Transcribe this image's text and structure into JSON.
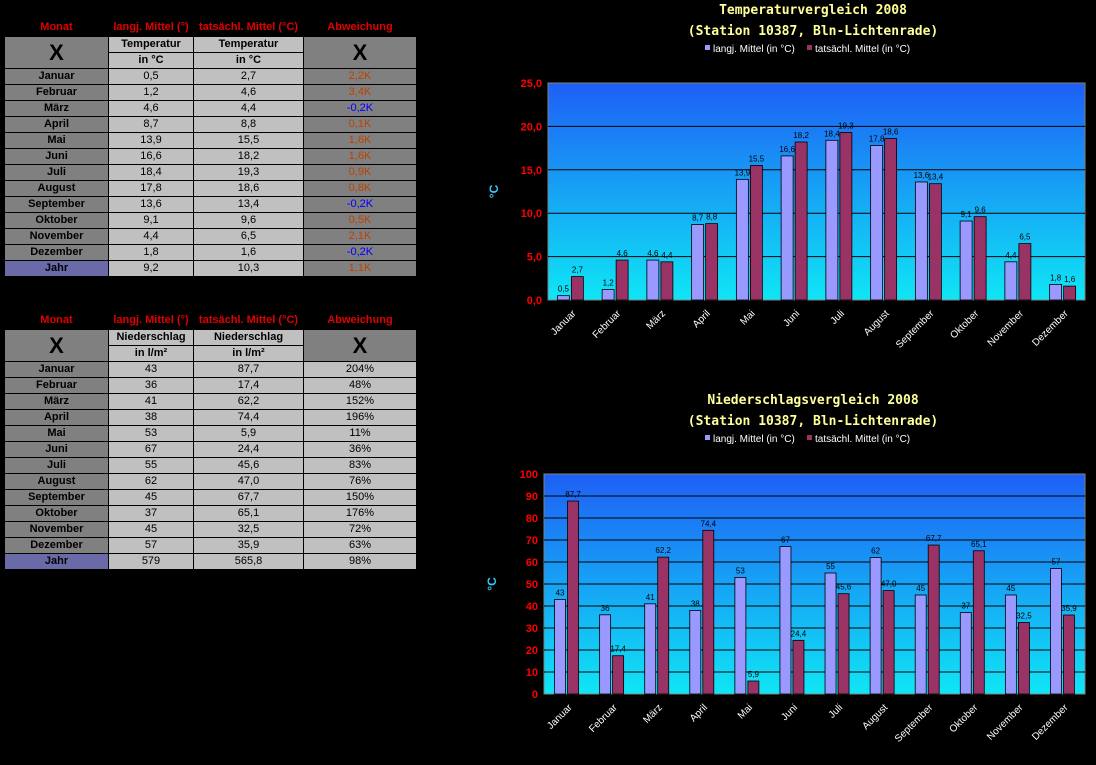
{
  "temp_table": {
    "headers": [
      "Monat",
      "langj. Mittel (°)",
      "tatsächl. Mittel (°C)",
      "Abweichung"
    ],
    "x_mark": "X",
    "sub1_label": "Temperatur",
    "sub1_unit": "in °C",
    "sub2_label": "Temperatur",
    "sub2_unit": "in °C",
    "rows": [
      {
        "month": "Januar",
        "avg": "0,5",
        "actual": "2,7",
        "dev": "2,2K",
        "neg": false
      },
      {
        "month": "Februar",
        "avg": "1,2",
        "actual": "4,6",
        "dev": "3,4K",
        "neg": false
      },
      {
        "month": "März",
        "avg": "4,6",
        "actual": "4,4",
        "dev": "-0,2K",
        "neg": true
      },
      {
        "month": "April",
        "avg": "8,7",
        "actual": "8,8",
        "dev": "0,1K",
        "neg": false
      },
      {
        "month": "Mai",
        "avg": "13,9",
        "actual": "15,5",
        "dev": "1,6K",
        "neg": false
      },
      {
        "month": "Juni",
        "avg": "16,6",
        "actual": "18,2",
        "dev": "1,6K",
        "neg": false
      },
      {
        "month": "Juli",
        "avg": "18,4",
        "actual": "19,3",
        "dev": "0,9K",
        "neg": false
      },
      {
        "month": "August",
        "avg": "17,8",
        "actual": "18,6",
        "dev": "0,8K",
        "neg": false
      },
      {
        "month": "September",
        "avg": "13,6",
        "actual": "13,4",
        "dev": "-0,2K",
        "neg": true
      },
      {
        "month": "Oktober",
        "avg": "9,1",
        "actual": "9,6",
        "dev": "0,5K",
        "neg": false
      },
      {
        "month": "November",
        "avg": "4,4",
        "actual": "6,5",
        "dev": "2,1K",
        "neg": false
      },
      {
        "month": "Dezember",
        "avg": "1,8",
        "actual": "1,6",
        "dev": "-0,2K",
        "neg": true
      }
    ],
    "year": {
      "month": "Jahr",
      "avg": "9,2",
      "actual": "10,3",
      "dev": "1,1K",
      "neg": false
    }
  },
  "precip_table": {
    "headers": [
      "Monat",
      "langj. Mittel (°)",
      "tatsächl. Mittel (°C)",
      "Abweichung"
    ],
    "x_mark": "X",
    "sub1_label": "Niederschlag",
    "sub1_unit": "in l/m²",
    "sub2_label": "Niederschlag",
    "sub2_unit": "in l/m²",
    "rows": [
      {
        "month": "Januar",
        "avg": "43",
        "actual": "87,7",
        "dev": "204%"
      },
      {
        "month": "Februar",
        "avg": "36",
        "actual": "17,4",
        "dev": "48%"
      },
      {
        "month": "März",
        "avg": "41",
        "actual": "62,2",
        "dev": "152%"
      },
      {
        "month": "April",
        "avg": "38",
        "actual": "74,4",
        "dev": "196%"
      },
      {
        "month": "Mai",
        "avg": "53",
        "actual": "5,9",
        "dev": "11%"
      },
      {
        "month": "Juni",
        "avg": "67",
        "actual": "24,4",
        "dev": "36%"
      },
      {
        "month": "Juli",
        "avg": "55",
        "actual": "45,6",
        "dev": "83%"
      },
      {
        "month": "August",
        "avg": "62",
        "actual": "47,0",
        "dev": "76%"
      },
      {
        "month": "September",
        "avg": "45",
        "actual": "67,7",
        "dev": "150%"
      },
      {
        "month": "Oktober",
        "avg": "37",
        "actual": "65,1",
        "dev": "176%"
      },
      {
        "month": "November",
        "avg": "45",
        "actual": "32,5",
        "dev": "72%"
      },
      {
        "month": "Dezember",
        "avg": "57",
        "actual": "35,9",
        "dev": "63%"
      }
    ],
    "year": {
      "month": "Jahr",
      "avg": "579",
      "actual": "565,8",
      "dev": "98%"
    }
  },
  "colors": {
    "avg_bar": "#9999ff",
    "actual_bar": "#993366",
    "plot_top": "#1e5ff5",
    "plot_bottom": "#0fe6f5",
    "axis_labels": "#ff0000",
    "title": "#ffff99",
    "ylabel": "#33ccff"
  },
  "chart_data": [
    {
      "type": "bar",
      "title": "Temperaturvergleich 2008",
      "subtitle": "(Station 10387, Bln-Lichtenrade)",
      "ylabel": "°C",
      "xlabel": "",
      "ylim": [
        0,
        25
      ],
      "yticks": [
        "0,0",
        "5,0",
        "10,0",
        "15,0",
        "20,0",
        "25,0"
      ],
      "grid": true,
      "legend": "top",
      "categories": [
        "Januar",
        "Februar",
        "März",
        "April",
        "Mai",
        "Juni",
        "Juli",
        "August",
        "September",
        "Oktober",
        "November",
        "Dezember"
      ],
      "series": [
        {
          "name": "langj. Mittel (in °C)",
          "values": [
            0.5,
            1.2,
            4.6,
            8.7,
            13.9,
            16.6,
            18.4,
            17.8,
            13.6,
            9.1,
            4.4,
            1.8
          ],
          "labels": [
            "0,5",
            "1,2",
            "4,6",
            "8,7",
            "13,9",
            "16,6",
            "18,4",
            "17,8",
            "13,6",
            "9,1",
            "4,4",
            "1,8"
          ]
        },
        {
          "name": "tatsächl. Mittel (in °C)",
          "values": [
            2.7,
            4.6,
            4.4,
            8.8,
            15.5,
            18.2,
            19.3,
            18.6,
            13.4,
            9.6,
            6.5,
            1.6
          ],
          "labels": [
            "2,7",
            "4,6",
            "4,4",
            "8,8",
            "15,5",
            "18,2",
            "19,3",
            "18,6",
            "13,4",
            "9,6",
            "6,5",
            "1,6"
          ]
        }
      ]
    },
    {
      "type": "bar",
      "title": "Niederschlagsvergleich 2008",
      "subtitle": "(Station 10387, Bln-Lichtenrade)",
      "ylabel": "°C",
      "xlabel": "",
      "ylim": [
        0,
        100
      ],
      "yticks": [
        "0",
        "10",
        "20",
        "30",
        "40",
        "50",
        "60",
        "70",
        "80",
        "90",
        "100"
      ],
      "grid": true,
      "legend": "top",
      "categories": [
        "Januar",
        "Februar",
        "März",
        "April",
        "Mai",
        "Juni",
        "Juli",
        "August",
        "September",
        "Oktober",
        "November",
        "Dezember"
      ],
      "series": [
        {
          "name": "langj. Mittel (in °C)",
          "values": [
            43,
            36,
            41,
            38,
            53,
            67,
            55,
            62,
            45,
            37,
            45,
            57
          ],
          "labels": [
            "43",
            "36",
            "41",
            "38",
            "53",
            "67",
            "55",
            "62",
            "45",
            "37",
            "45",
            "57"
          ]
        },
        {
          "name": "tatsächl. Mittel (in °C)",
          "values": [
            87.7,
            17.4,
            62.2,
            74.4,
            5.9,
            24.4,
            45.6,
            47.0,
            67.7,
            65.1,
            32.5,
            35.9
          ],
          "labels": [
            "87,7",
            "17,4",
            "62,2",
            "74,4",
            "5,9",
            "24,4",
            "45,6",
            "47,0",
            "67,7",
            "65,1",
            "32,5",
            "35,9"
          ]
        }
      ]
    }
  ]
}
